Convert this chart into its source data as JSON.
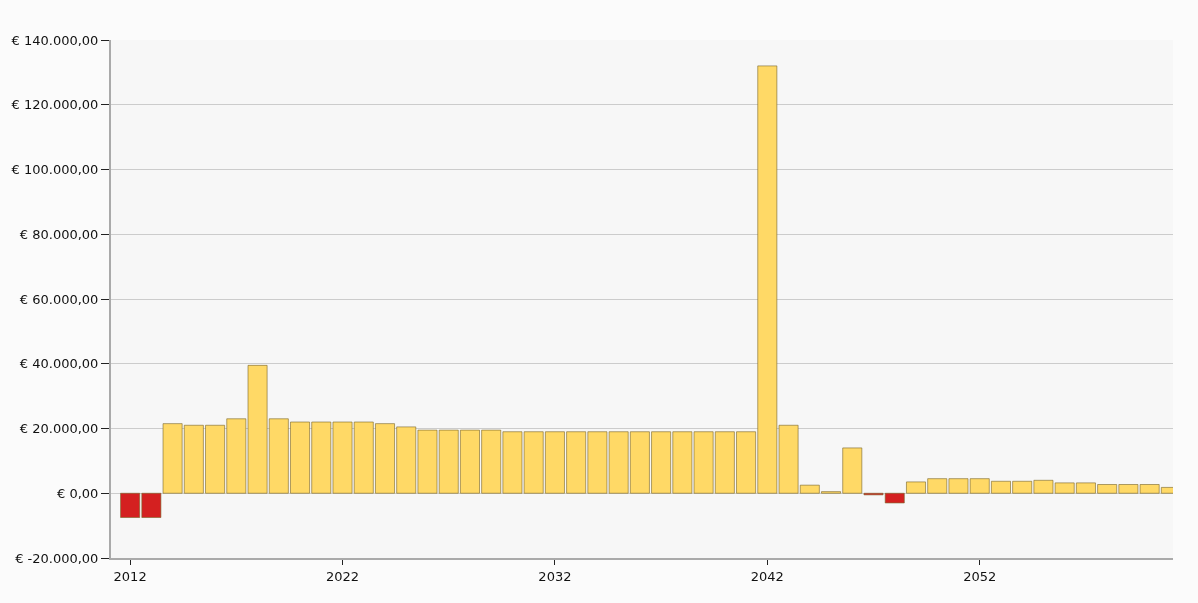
{
  "chart_data": {
    "type": "bar",
    "x": [
      2012,
      2013,
      2014,
      2015,
      2016,
      2017,
      2018,
      2019,
      2020,
      2021,
      2022,
      2023,
      2024,
      2025,
      2026,
      2027,
      2028,
      2029,
      2030,
      2031,
      2032,
      2033,
      2034,
      2035,
      2036,
      2037,
      2038,
      2039,
      2040,
      2041,
      2042,
      2043,
      2044,
      2045,
      2046,
      2047,
      2048,
      2049,
      2050,
      2051,
      2052,
      2053,
      2054,
      2055,
      2056,
      2057,
      2058,
      2059,
      2060,
      2061
    ],
    "values": [
      -7500,
      -7500,
      21500,
      21000,
      21000,
      23000,
      39500,
      23000,
      22000,
      22000,
      22000,
      22000,
      21500,
      20500,
      19500,
      19500,
      19500,
      19500,
      19000,
      19000,
      19000,
      19000,
      19000,
      19000,
      19000,
      19000,
      19000,
      19000,
      19000,
      19000,
      132000,
      21000,
      2500,
      500,
      14000,
      -500,
      -3000,
      3500,
      4500,
      4500,
      4500,
      3700,
      3700,
      4000,
      3200,
      3200,
      2700,
      2700,
      2700,
      1800
    ],
    "colors": [
      "#d42020",
      "#d42020",
      "#ffd966",
      "#ffd966",
      "#ffd966",
      "#ffd966",
      "#ffd966",
      "#ffd966",
      "#ffd966",
      "#ffd966",
      "#ffd966",
      "#ffd966",
      "#ffd966",
      "#ffd966",
      "#ffd966",
      "#ffd966",
      "#ffd966",
      "#ffd966",
      "#ffd966",
      "#ffd966",
      "#ffd966",
      "#ffd966",
      "#ffd966",
      "#ffd966",
      "#ffd966",
      "#ffd966",
      "#ffd966",
      "#ffd966",
      "#ffd966",
      "#ffd966",
      "#ffd966",
      "#ffd966",
      "#ffd966",
      "#ffd966",
      "#ffd966",
      "#d42020",
      "#d42020",
      "#ffd966",
      "#ffd966",
      "#ffd966",
      "#ffd966",
      "#ffd966",
      "#ffd966",
      "#ffd966",
      "#ffd966",
      "#ffd966",
      "#ffd966",
      "#ffd966",
      "#ffd966",
      "#ffd966"
    ],
    "xlim": [
      2011.1,
      2061.1
    ],
    "xticks": [
      2012,
      2022,
      2032,
      2042,
      2052
    ],
    "ylim": [
      -20000,
      140000
    ],
    "yticks": [
      {
        "value": -20000,
        "label": "€ -20.000,00"
      },
      {
        "value": 0,
        "label": "€ 0,00"
      },
      {
        "value": 20000,
        "label": "€ 20.000,00"
      },
      {
        "value": 40000,
        "label": "€ 40.000,00"
      },
      {
        "value": 60000,
        "label": "€ 60.000,00"
      },
      {
        "value": 80000,
        "label": "€ 80.000,00"
      },
      {
        "value": 100000,
        "label": "€ 100.000,00"
      },
      {
        "value": 120000,
        "label": "€ 120.000,00"
      },
      {
        "value": 140000,
        "label": "€ 140.000,00"
      }
    ],
    "grid": "y"
  }
}
